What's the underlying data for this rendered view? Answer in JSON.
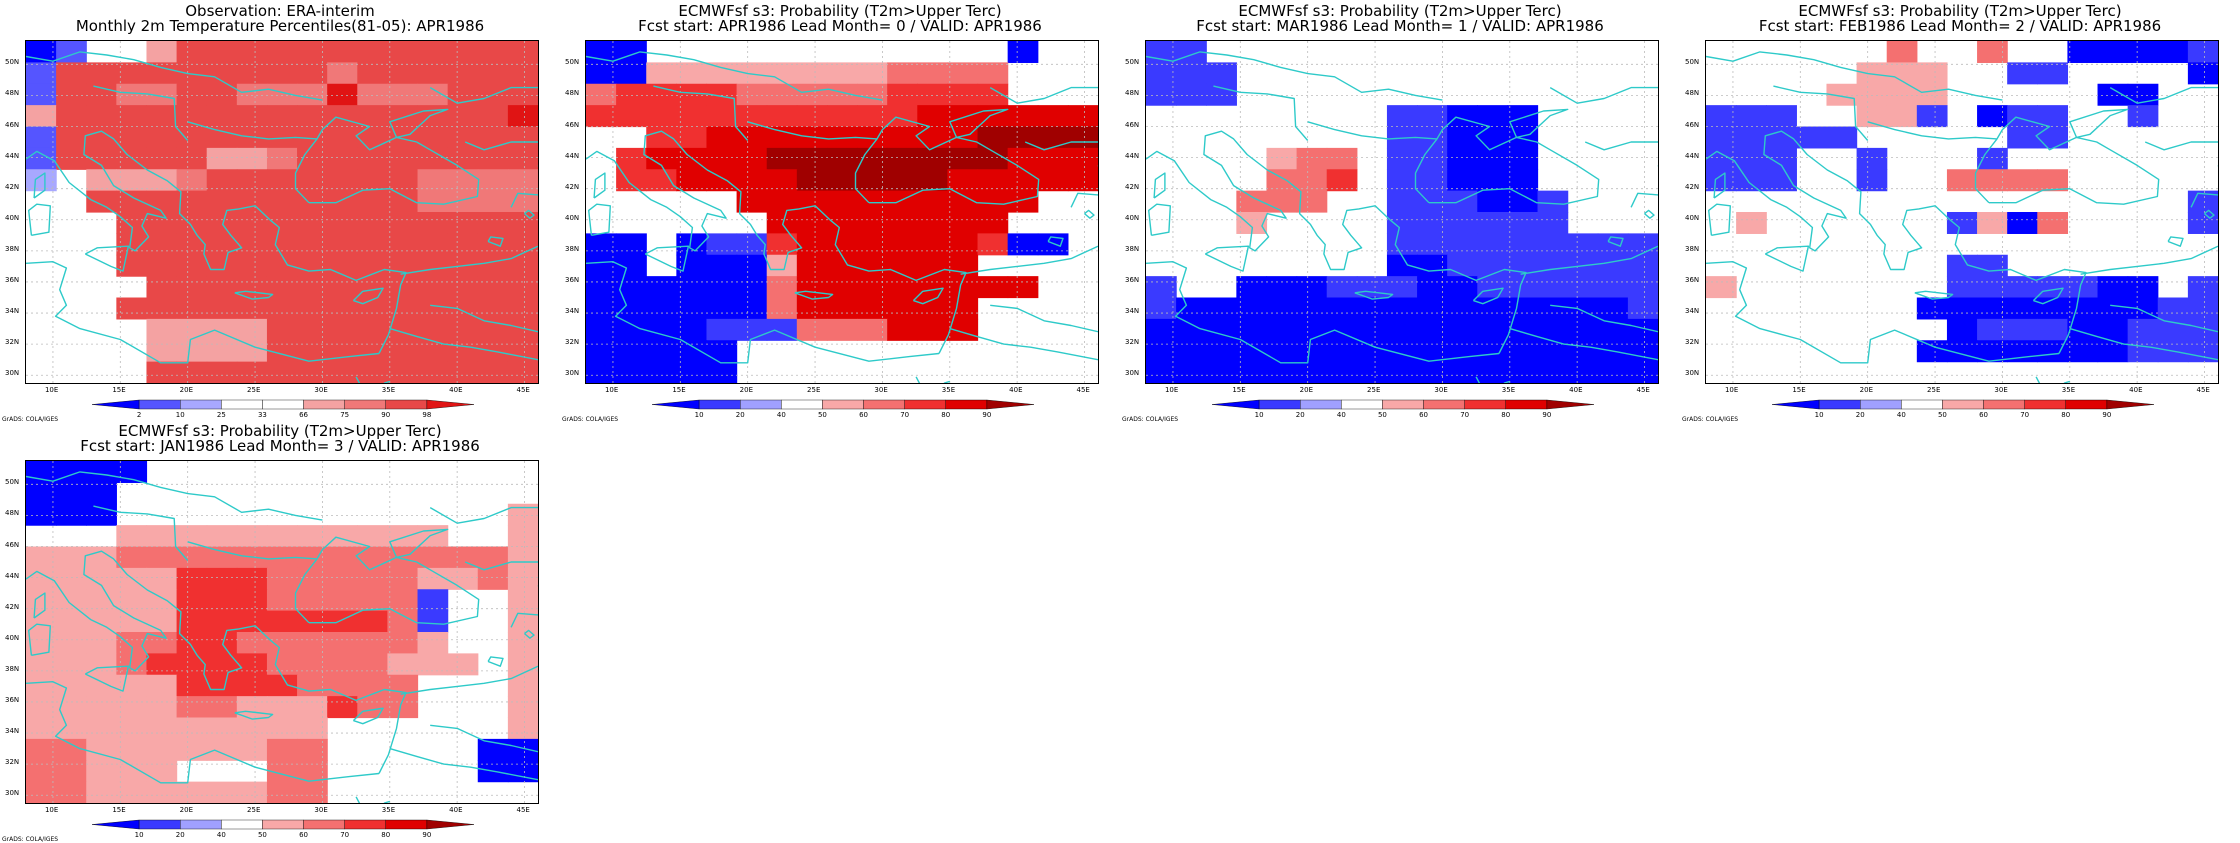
{
  "colors": {
    "coast": "#2ecac9",
    "grid": "#bbbbbb",
    "scale_obs": [
      "#0000ff",
      "#5555ff",
      "#a8a8ff",
      "#ffffff",
      "#ffffff",
      "#f4a2a2",
      "#f07878",
      "#e84848",
      "#e01414"
    ],
    "scale_prob": [
      "#0000ff",
      "#3a3aff",
      "#a0a0ff",
      "#ffffff",
      "#f8a8a8",
      "#f47070",
      "#f03030",
      "#e00000",
      "#a00000"
    ]
  },
  "credit": "GrADS: COLA/IGES",
  "lat_labels": [
    "50N",
    "48N",
    "46N",
    "44N",
    "42N",
    "40N",
    "38N",
    "36N",
    "34N",
    "32N",
    "30N"
  ],
  "lon_labels": [
    "10E",
    "15E",
    "20E",
    "25E",
    "30E",
    "35E",
    "40E",
    "45E"
  ],
  "legend_obs": [
    "2",
    "10",
    "25",
    "33",
    "66",
    "75",
    "90",
    "98"
  ],
  "legend_prob": [
    "10",
    "20",
    "40",
    "50",
    "60",
    "70",
    "80",
    "90"
  ],
  "panels": [
    {
      "title1": "Observation: ERA-interim",
      "title2": "Monthly 2m Temperature Percentiles(81-05): APR1986",
      "scale": "obs",
      "grid": [
        "01335777777777777",
        "17777777776777777",
        "17766776668666777",
        "57777777777777778",
        "17777777777777777",
        "17777755677777777",
        "23555677777776666",
        "33777777777776666",
        "33377777777777777",
        "33477777777777777",
        "33377777777777777",
        "33337777777777777",
        "33377777777777777",
        "33335555777777777",
        "33335555777777777",
        "33337777777777777"
      ]
    },
    {
      "title1": "ECMWFsf s3: Probability (T2m>Upper Terc)",
      "title2": "Fcst start: APR1986  Lead Month= 0 / VALID: APR1986",
      "scale": "prob",
      "grid": [
        "00333333333333033",
        "00444444445555333",
        "56666555556666333",
        "66666666666777777",
        "33667777777778888",
        "36777788888888777",
        "36677778888877777",
        "33333777777777733",
        "33333377777777333",
        "00301167777776003",
        "00300047777773333",
        "00000057777777733",
        "00000057777773333",
        "00001115557773333",
        "00000333333333333",
        "00000333333333333"
      ]
    },
    {
      "title1": "ECMWFsf s3: Probability (T2m>Upper Terc)",
      "title2": "Fcst start: MAR1986  Lead Month= 1 / VALID: APR1986",
      "scale": "prob",
      "grid": [
        "11333333333333333",
        "11133333333333333",
        "11133333333333333",
        "33333333110003333",
        "33333333110003333",
        "33334553110003333",
        "33335563110003333",
        "33355533111001333",
        "33343333111111333",
        "33333333111111111",
        "33333333001111111",
        "13300011100111111",
        "10000000000000001",
        "00000000000000000",
        "00000000000000000",
        "00000000000000000"
      ]
    },
    {
      "title1": "ECMWFsf s3: Probability (T2m>Upper Terc)",
      "title2": "Fcst start: FEB1986  Lead Month= 2 / VALID: APR1986",
      "scale": "prob",
      "grid": [
        "33333353353300001",
        "33333444331133330",
        "33334444333330033",
        "11133441301133133",
        "11111333331133333",
        "11133133313333333",
        "11133133555533333",
        "33333333333333331",
        "34333333140533331",
        "33333333333333333",
        "33333333113333333",
        "43333333111110031",
        "33333330000000011",
        "33333333011100111",
        "33333330000000111",
        "33333333333333333"
      ]
    },
    {
      "title1": "ECMWFsf s3: Probability (T2m>Upper Terc)",
      "title2": "Fcst start: JAN1986  Lead Month= 3 / VALID: APR1986",
      "scale": "prob",
      "grid": [
        "00003333333333333",
        "00033333333333333",
        "00033333333333334",
        "33344444444444334",
        "44455555555555554",
        "44444666555554454",
        "44444666555551334",
        "44444666666651334",
        "44455665555554334",
        "44456666555544434",
        "44444666655553334",
        "44444554446553334",
        "44444444443333334",
        "55444444553333300",
        "55444333553333300",
        "55444444553333333"
      ]
    }
  ]
}
